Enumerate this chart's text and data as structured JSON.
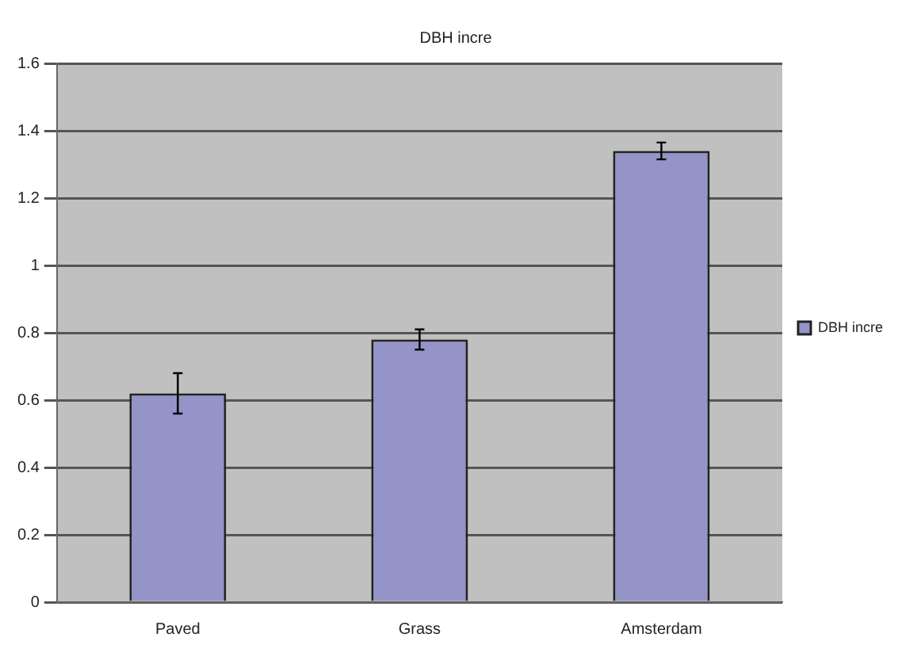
{
  "chart_data": {
    "type": "bar",
    "title": "DBH incre",
    "categories": [
      "Paved",
      "Grass",
      "Amsterdam"
    ],
    "series": [
      {
        "name": "DBH incre",
        "color": "#9494c8",
        "values": [
          0.62,
          0.78,
          1.34
        ],
        "errors": [
          0.06,
          0.03,
          0.025
        ]
      }
    ],
    "ylim": [
      0,
      1.6
    ],
    "yticks": [
      0,
      0.2,
      0.4,
      0.6,
      0.8,
      1,
      1.2,
      1.4,
      1.6
    ],
    "grid": "y",
    "legend": "right"
  }
}
